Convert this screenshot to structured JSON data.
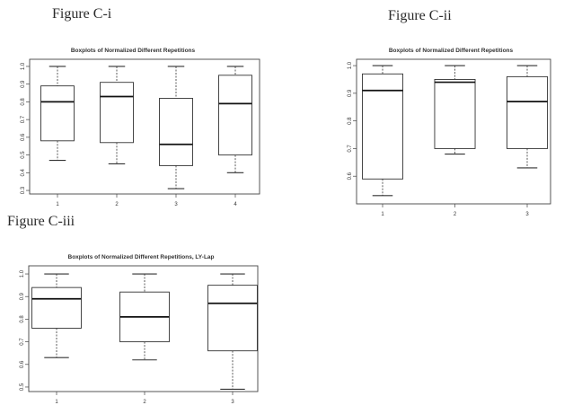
{
  "figure_labels": [
    "Figure C-i",
    "Figure C-ii",
    "Figure C-iii"
  ],
  "chart_data": [
    {
      "type": "boxplot",
      "title": "Boxplots of Normalized Different Repetitions",
      "xlabel": "",
      "ylabel": "",
      "categories": [
        "1",
        "2",
        "3",
        "4"
      ],
      "ylim": [
        0.28,
        1.02
      ],
      "yticks": [
        0.3,
        0.4,
        0.5,
        0.6,
        0.7,
        0.8,
        0.9,
        1.0
      ],
      "ytick_labels": [
        "0.3",
        "0.4",
        "0.5",
        "0.6",
        "0.7",
        "0.8",
        "0.9",
        "1.0"
      ],
      "boxes": [
        {
          "min": 0.47,
          "q1": 0.58,
          "median": 0.8,
          "q3": 0.89,
          "max": 1.0
        },
        {
          "min": 0.45,
          "q1": 0.57,
          "median": 0.83,
          "q3": 0.91,
          "max": 1.0
        },
        {
          "min": 0.31,
          "q1": 0.44,
          "median": 0.56,
          "q3": 0.82,
          "max": 1.0
        },
        {
          "min": 0.4,
          "q1": 0.5,
          "median": 0.79,
          "q3": 0.95,
          "max": 1.0
        }
      ]
    },
    {
      "type": "boxplot",
      "title": "Boxplots of Normalized Different Repetitions",
      "xlabel": "",
      "ylabel": "",
      "categories": [
        "1",
        "2",
        "3"
      ],
      "ylim": [
        0.5,
        1.01
      ],
      "yticks": [
        0.6,
        0.7,
        0.8,
        0.9,
        1.0
      ],
      "ytick_labels": [
        "0.6",
        "0.7",
        "0.8",
        "0.9",
        "1.0"
      ],
      "boxes": [
        {
          "min": 0.53,
          "q1": 0.59,
          "median": 0.91,
          "q3": 0.97,
          "max": 1.0
        },
        {
          "min": 0.68,
          "q1": 0.7,
          "median": 0.94,
          "q3": 0.95,
          "max": 1.0
        },
        {
          "min": 0.63,
          "q1": 0.7,
          "median": 0.87,
          "q3": 0.96,
          "max": 1.0
        }
      ]
    },
    {
      "type": "boxplot",
      "title": "Boxplots of Normalized Different Repetitions, LY-Lap",
      "xlabel": "",
      "ylabel": "",
      "categories": [
        "1",
        "2",
        "3"
      ],
      "ylim": [
        0.48,
        1.02
      ],
      "yticks": [
        0.5,
        0.6,
        0.7,
        0.8,
        0.9,
        1.0
      ],
      "ytick_labels": [
        "0.5",
        "0.6",
        "0.7",
        "0.8",
        "0.9",
        "1.0"
      ],
      "boxes": [
        {
          "min": 0.63,
          "q1": 0.76,
          "median": 0.89,
          "q3": 0.94,
          "max": 1.0
        },
        {
          "min": 0.62,
          "q1": 0.7,
          "median": 0.81,
          "q3": 0.92,
          "max": 1.0
        },
        {
          "min": 0.49,
          "q1": 0.66,
          "median": 0.87,
          "q3": 0.95,
          "max": 1.0
        }
      ]
    }
  ]
}
